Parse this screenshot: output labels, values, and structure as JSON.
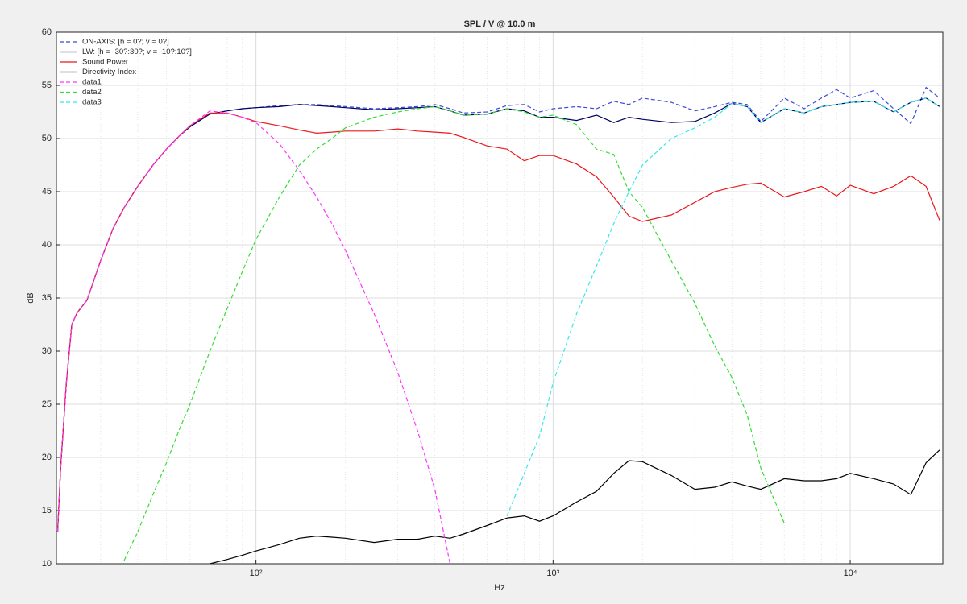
{
  "chart_data": {
    "type": "line",
    "title": "SPL / V @ 10.0 m",
    "xlabel": "Hz",
    "ylabel": "dB",
    "xscale": "log",
    "xlim": [
      21.3,
      20500
    ],
    "ylim": [
      10,
      60
    ],
    "xticks": [
      {
        "value": 100,
        "label": "10²"
      },
      {
        "value": 1000,
        "label": "10³"
      },
      {
        "value": 10000,
        "label": "10⁴"
      }
    ],
    "yticks": [
      10,
      15,
      20,
      25,
      30,
      35,
      40,
      45,
      50,
      55,
      60
    ],
    "grid": true,
    "minor_grid": true,
    "legend": "top-left",
    "x": [
      21.5,
      22,
      23,
      24,
      25,
      27,
      30,
      33,
      36,
      40,
      45,
      50,
      55,
      60,
      70,
      80,
      90,
      100,
      120,
      140,
      160,
      180,
      200,
      250,
      300,
      350,
      400,
      450,
      500,
      600,
      700,
      800,
      900,
      1000,
      1200,
      1400,
      1600,
      1800,
      2000,
      2500,
      3000,
      3500,
      4000,
      4500,
      5000,
      6000,
      7000,
      8000,
      9000,
      10000,
      12000,
      14000,
      16000,
      18000,
      20000
    ],
    "series": [
      {
        "name": "ON-AXIS: [h = 0?; v = 0?]",
        "color": "#3b4bd8",
        "dashed": true,
        "values": [
          13,
          19,
          27,
          32.5,
          33.6,
          34.8,
          38.5,
          41.5,
          43.5,
          45.5,
          47.5,
          49,
          50.2,
          51.2,
          52.3,
          52.6,
          52.8,
          52.9,
          53.1,
          53.2,
          53.2,
          53.1,
          53,
          52.8,
          52.9,
          53,
          53.2,
          52.8,
          52.4,
          52.5,
          53.1,
          53.2,
          52.5,
          52.8,
          53,
          52.8,
          53.5,
          53.2,
          53.8,
          53.4,
          52.6,
          53,
          53.4,
          53.2,
          51.6,
          53.8,
          52.8,
          53.8,
          54.6,
          53.8,
          54.5,
          52.8,
          51.4,
          54.8,
          53.8
        ]
      },
      {
        "name": "LW: [h = -30?:30?; v = -10?:10?]",
        "color": "#000060",
        "dashed": false,
        "values": [
          13,
          19,
          27,
          32.5,
          33.6,
          34.8,
          38.5,
          41.5,
          43.5,
          45.5,
          47.5,
          49,
          50.2,
          51.1,
          52.3,
          52.6,
          52.8,
          52.9,
          53,
          53.2,
          53.1,
          53,
          52.9,
          52.7,
          52.8,
          52.9,
          53,
          52.6,
          52.2,
          52.3,
          52.8,
          52.6,
          52,
          52,
          51.7,
          52.2,
          51.5,
          52,
          51.8,
          51.5,
          51.6,
          52.4,
          53.3,
          53,
          51.5,
          52.8,
          52.4,
          53,
          53.2,
          53.4,
          53.5,
          52.5,
          53.4,
          53.8,
          53
        ]
      },
      {
        "name": "Sound Power",
        "color": "#e8191e",
        "dashed": false,
        "values": [
          13,
          19,
          27,
          32.5,
          33.6,
          34.8,
          38.5,
          41.5,
          43.5,
          45.5,
          47.5,
          49,
          50.2,
          51.2,
          52.4,
          52.4,
          52,
          51.6,
          51.2,
          50.8,
          50.5,
          50.6,
          50.7,
          50.7,
          50.9,
          50.7,
          50.6,
          50.5,
          50.1,
          49.3,
          49,
          47.9,
          48.4,
          48.4,
          47.6,
          46.4,
          44.5,
          42.7,
          42.2,
          42.8,
          44,
          45,
          45.4,
          45.7,
          45.8,
          44.5,
          45,
          45.5,
          44.6,
          45.6,
          44.8,
          45.5,
          46.5,
          45.5,
          42.3
        ]
      },
      {
        "name": "Directivity Index",
        "color": "#000000",
        "dashed": false,
        "values": [
          null,
          null,
          null,
          null,
          null,
          null,
          null,
          null,
          null,
          null,
          null,
          null,
          null,
          null,
          10,
          10.4,
          10.8,
          11.2,
          11.8,
          12.4,
          12.6,
          12.5,
          12.4,
          12,
          12.3,
          12.3,
          12.6,
          12.4,
          12.8,
          13.6,
          14.3,
          14.5,
          14,
          14.5,
          15.8,
          16.8,
          18.5,
          19.7,
          19.6,
          18.3,
          17,
          17.2,
          17.7,
          17.3,
          17,
          18,
          17.8,
          17.8,
          18,
          18.5,
          18,
          17.5,
          16.5,
          19.5,
          20.7
        ]
      },
      {
        "name": "data1",
        "color": "#ff33ff",
        "dashed": true,
        "values": [
          13,
          19,
          27,
          32.5,
          33.6,
          34.8,
          38.5,
          41.5,
          43.5,
          45.5,
          47.5,
          49,
          50.2,
          51.2,
          52.6,
          52.4,
          52,
          51.5,
          49.5,
          47,
          44.5,
          42,
          39.5,
          33.5,
          28,
          22.5,
          17,
          10,
          null,
          null,
          null,
          null,
          null,
          null,
          null,
          null,
          null,
          null,
          null,
          null,
          null,
          null,
          null,
          null,
          null,
          null,
          null,
          null,
          null,
          null,
          null,
          null,
          null,
          null,
          null
        ]
      },
      {
        "name": "data2",
        "color": "#33dd33",
        "dashed": true,
        "values": [
          null,
          null,
          null,
          null,
          null,
          null,
          null,
          null,
          10.3,
          13,
          16.5,
          19.5,
          22.5,
          25,
          30,
          34,
          37.5,
          40.5,
          44.5,
          47.5,
          49,
          50,
          51,
          52,
          52.5,
          52.8,
          53,
          52.6,
          52.2,
          52.3,
          52.8,
          52.5,
          52,
          52.2,
          51.3,
          49,
          48.5,
          45,
          43.5,
          38.5,
          34.5,
          30.5,
          27.5,
          24,
          19,
          13.8,
          null,
          null,
          null,
          null,
          null,
          null,
          null,
          null,
          null
        ]
      },
      {
        "name": "data3",
        "color": "#33e8e8",
        "dashed": true,
        "values": [
          null,
          null,
          null,
          null,
          null,
          null,
          null,
          null,
          null,
          null,
          null,
          null,
          null,
          null,
          null,
          null,
          null,
          null,
          null,
          null,
          null,
          null,
          null,
          null,
          null,
          null,
          null,
          null,
          null,
          null,
          14.5,
          18.5,
          22,
          27,
          33.5,
          38,
          42,
          45,
          47.5,
          50,
          51,
          52,
          53.3,
          53,
          51.5,
          52.8,
          52.4,
          53,
          53.2,
          53.4,
          53.5,
          52.5,
          53.4,
          53.8,
          53
        ]
      }
    ]
  }
}
